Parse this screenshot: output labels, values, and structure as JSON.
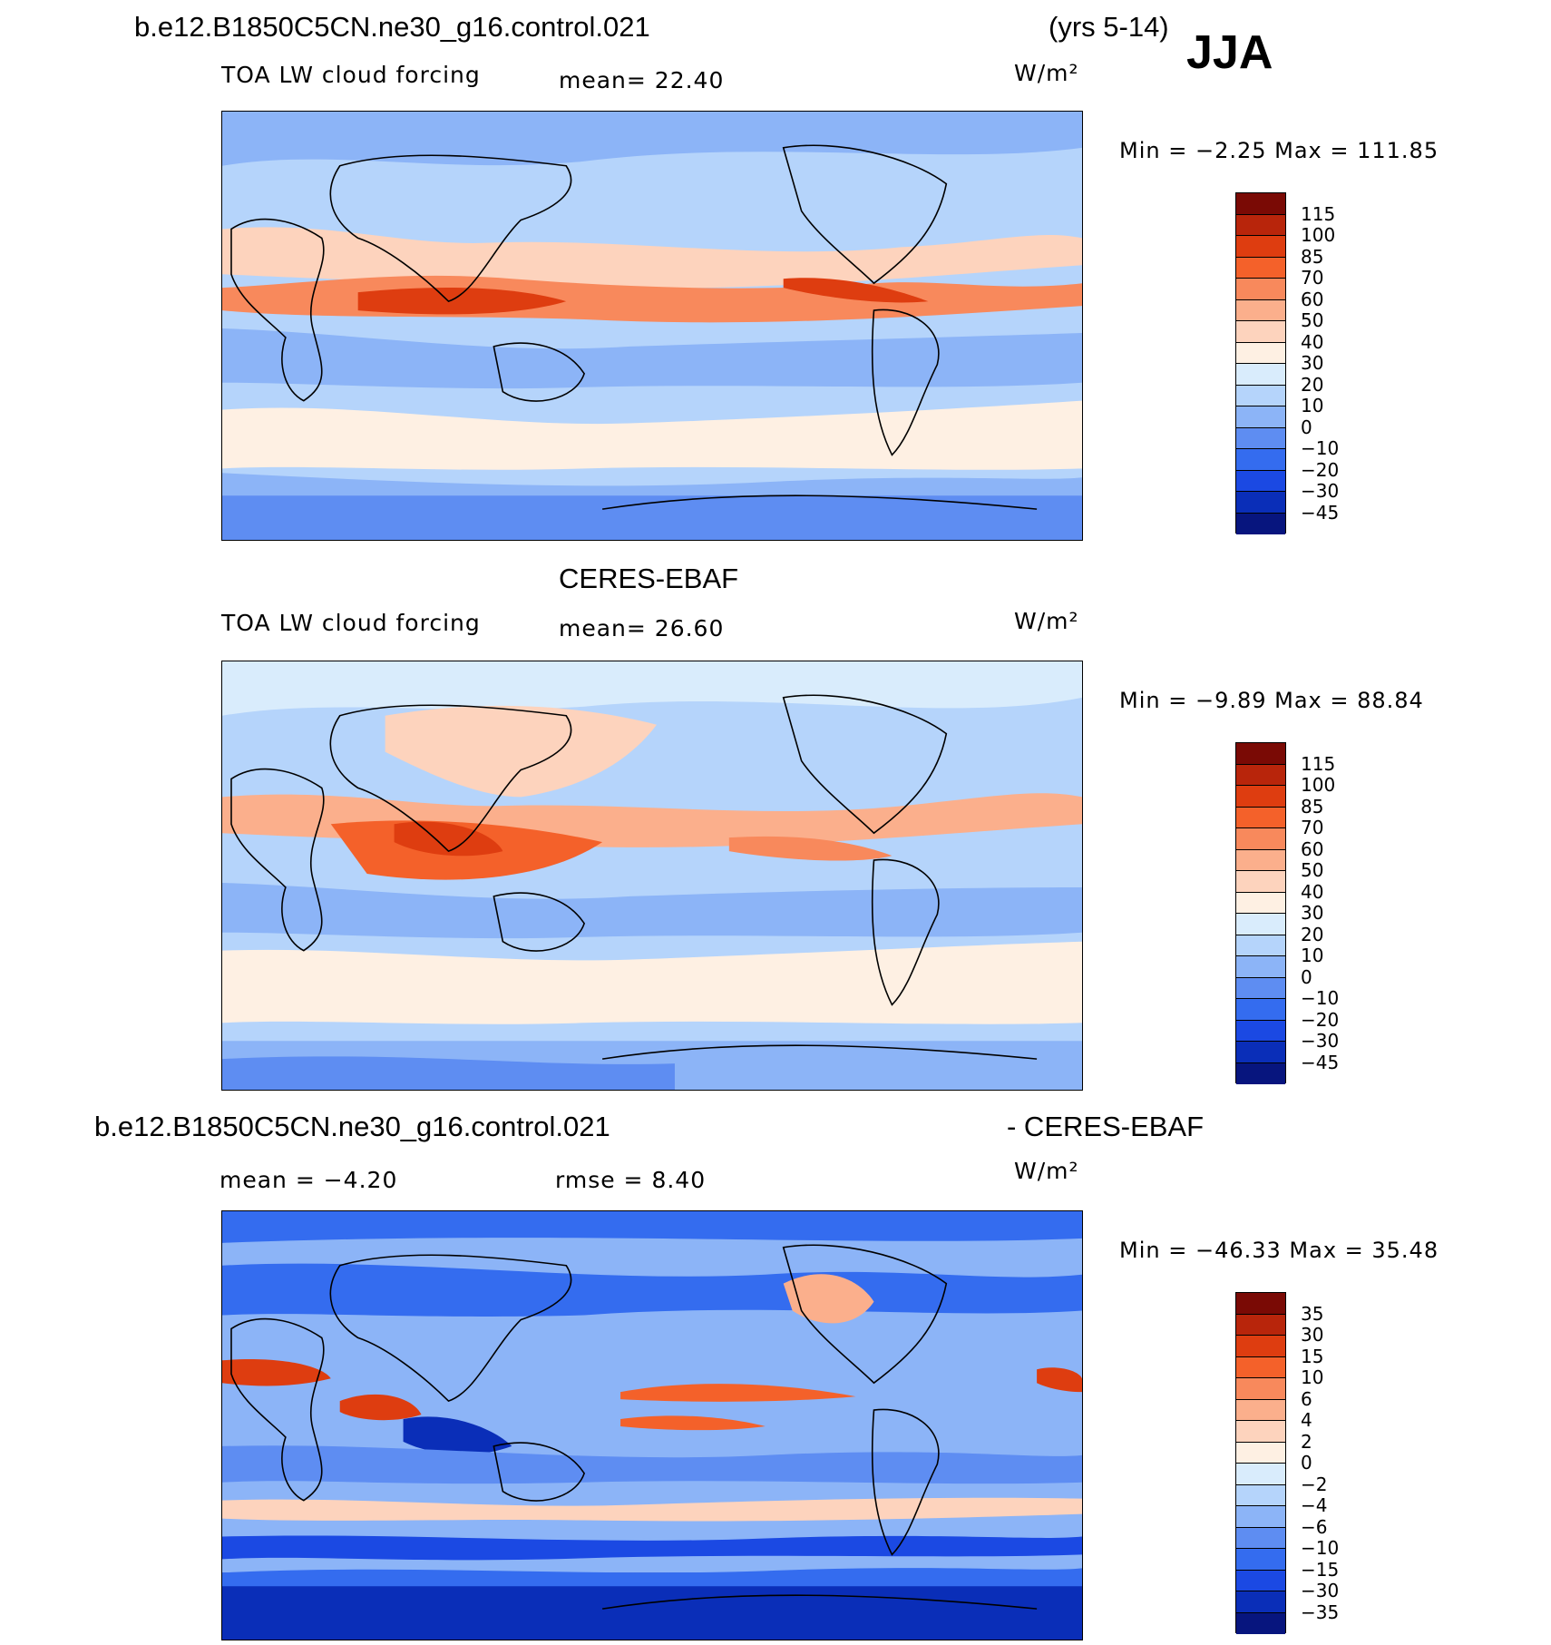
{
  "season": "JJA",
  "panel1": {
    "case_title": "b.e12.B1850C5CN.ne30_g16.control.021",
    "years": "(yrs 5-14)",
    "variable": "TOA LW cloud forcing",
    "mean_label": "mean=   22.40",
    "units": "W/m²",
    "min_max": "Min =   −2.25 Max = 111.85"
  },
  "panel2": {
    "case_title": "CERES-EBAF",
    "variable": "TOA LW cloud forcing",
    "mean_label": "mean=   26.60",
    "units": "W/m²",
    "min_max": "Min =   −9.89 Max =   88.84"
  },
  "panel3": {
    "case_title": "b.e12.B1850C5CN.ne30_g16.control.021",
    "diff_title": "- CERES-EBAF",
    "mean_label": "mean =   −4.20",
    "rmse_label": "rmse =    8.40",
    "units": "W/m²",
    "min_max": "Min = −46.33 Max =   35.48"
  },
  "colorbar_fields": {
    "labels": [
      "115",
      "100",
      "85",
      "70",
      "60",
      "50",
      "40",
      "30",
      "20",
      "10",
      "0",
      "−10",
      "−20",
      "−30",
      "−45"
    ],
    "colors": [
      "#7a0a05",
      "#b8250b",
      "#de3d10",
      "#f4612a",
      "#f8895c",
      "#fbaf8c",
      "#fdd3bd",
      "#fef0e3",
      "#d9ecfc",
      "#b5d4fb",
      "#8cb4f7",
      "#5e8df2",
      "#346cef",
      "#1b49e3",
      "#0a2eb8",
      "#07157e"
    ]
  },
  "colorbar_diff": {
    "labels": [
      "35",
      "30",
      "15",
      "10",
      "6",
      "4",
      "2",
      "0",
      "−2",
      "−4",
      "−6",
      "−10",
      "−15",
      "−30",
      "−35"
    ],
    "colors": [
      "#7a0a05",
      "#b8250b",
      "#de3d10",
      "#f4612a",
      "#f8895c",
      "#fbaf8c",
      "#fdd3bd",
      "#fef0e3",
      "#d9ecfc",
      "#b5d4fb",
      "#8cb4f7",
      "#5e8df2",
      "#346cef",
      "#1b49e3",
      "#0a2eb8",
      "#07157e"
    ]
  }
}
